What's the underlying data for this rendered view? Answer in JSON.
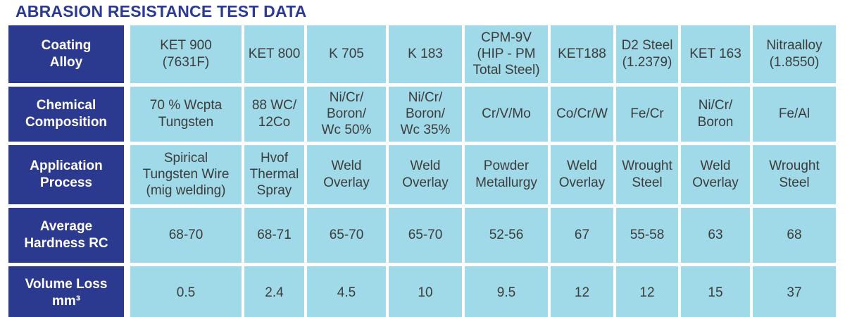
{
  "chart_data": {
    "type": "table",
    "title": "ABRASION RESISTANCE TEST DATA",
    "row_labels": [
      "Coating Alloy",
      "Chemical Composition",
      "Application Process",
      "Average Hardness RC",
      "Volume Loss mm³"
    ],
    "coating_alloys": [
      "KET 900 (7631F)",
      "KET 800",
      "K 705",
      "K 183",
      "CPM-9V (HIP - PM Total Steel)",
      "KET188",
      "D2 Steel (1.2379)",
      "KET 163",
      "Nitraalloy (1.8550)"
    ],
    "chemical_composition": [
      "70 % Wcpta Tungsten",
      "88 WC/12Co",
      "Ni/Cr/Boron/Wc 50%",
      "Ni/Cr/Boron/Wc 35%",
      "Cr/V/Mo",
      "Co/Cr/W",
      "Fe/Cr",
      "Ni/Cr/Boron",
      "Fe/Al"
    ],
    "application_process": [
      "Spirical Tungsten Wire (mig welding)",
      "Hvof Thermal Spray",
      "Weld Overlay",
      "Weld Overlay",
      "Powder Metallurgy",
      "Weld Overlay",
      "Wrought Steel",
      "Weld Overlay",
      "Wrought Steel"
    ],
    "average_hardness_rc": [
      "68-70",
      "68-71",
      "65-70",
      "65-70",
      "52-56",
      "67",
      "55-58",
      "63",
      "68"
    ],
    "volume_loss_mm3": [
      0.5,
      2.4,
      4.5,
      10,
      9.5,
      12,
      12,
      15,
      37
    ]
  },
  "colors": {
    "header_bg": "#2b3a8e",
    "cell_bg": "#a0d9e7",
    "title_text": "#2b3a94",
    "cell_text": "#3c3c3c",
    "header_text": "#ffffff"
  },
  "table": {
    "rows": [
      {
        "label": "Coating\nAlloy",
        "cells": [
          "KET 900\n(7631F)",
          "KET 800",
          "K 705",
          "K 183",
          "CPM-9V\n(HIP - PM\nTotal Steel)",
          "KET188",
          "D2 Steel\n(1.2379)",
          "KET 163",
          "Nitraalloy\n(1.8550)"
        ]
      },
      {
        "label": "Chemical\nComposition",
        "cells": [
          "70 % Wcpta\nTungsten",
          "88 WC/\n12Co",
          "Ni/Cr/\nBoron/\nWc 50%",
          "Ni/Cr/\nBoron/\nWc 35%",
          "Cr/V/Mo",
          "Co/Cr/W",
          "Fe/Cr",
          "Ni/Cr/\nBoron",
          "Fe/Al"
        ]
      },
      {
        "label": "Application\nProcess",
        "cells": [
          "Spirical\nTungsten Wire\n(mig welding)",
          "Hvof\nThermal\nSpray",
          "Weld\nOverlay",
          "Weld\nOverlay",
          "Powder\nMetallurgy",
          "Weld\nOverlay",
          "Wrought\nSteel",
          "Weld\nOverlay",
          "Wrought\nSteel"
        ]
      },
      {
        "label": "Average\nHardness RC",
        "cells": [
          "68-70",
          "68-71",
          "65-70",
          "65-70",
          "52-56",
          "67",
          "55-58",
          "63",
          "68"
        ]
      },
      {
        "label": "Volume Loss\nmm³",
        "cells": [
          "0.5",
          "2.4",
          "4.5",
          "10",
          "9.5",
          "12",
          "12",
          "15",
          "37"
        ]
      }
    ]
  }
}
